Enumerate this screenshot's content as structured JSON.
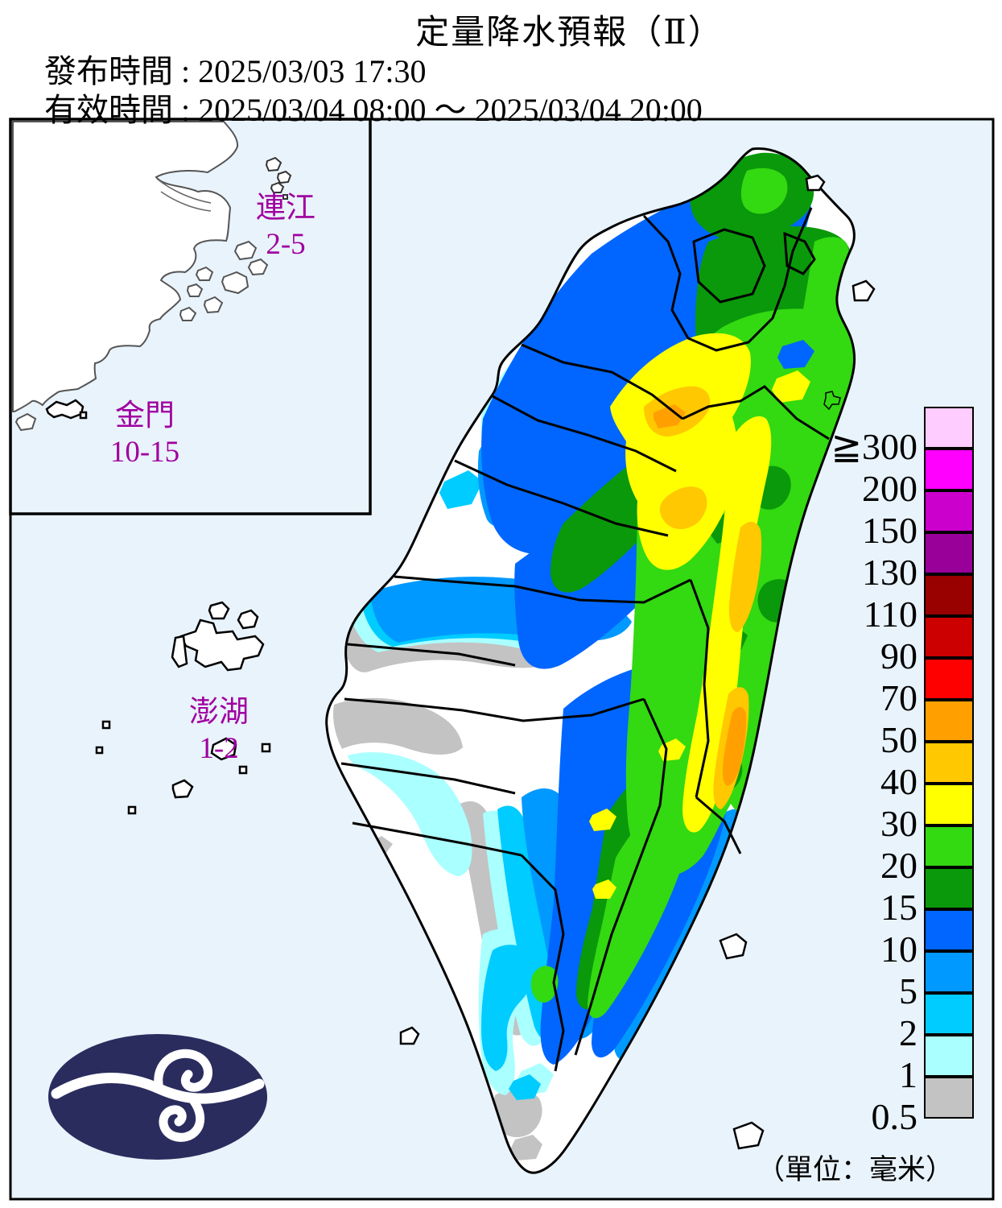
{
  "header": {
    "title": "定量降水預報（Ⅱ）",
    "issued_label": "發布時間",
    "separator": " : ",
    "issued_time": "2025/03/03 17:30",
    "valid_label": "有效時間",
    "valid_time": "2025/03/04 08:00 ～ 2025/03/04 20:00"
  },
  "offshore_regions": [
    {
      "name": "連江",
      "range": "2-5"
    },
    {
      "name": "金門",
      "range": "10-15"
    },
    {
      "name": "澎湖",
      "range": "1-2"
    }
  ],
  "legend": {
    "unit": "（單位：毫米）",
    "items": [
      {
        "value": "≧300",
        "color": "#FFCCFF"
      },
      {
        "value": "200",
        "color": "#FF00FF"
      },
      {
        "value": "150",
        "color": "#CC00CC"
      },
      {
        "value": "130",
        "color": "#990099"
      },
      {
        "value": "110",
        "color": "#990000"
      },
      {
        "value": "90",
        "color": "#CC0000"
      },
      {
        "value": "70",
        "color": "#FF0000"
      },
      {
        "value": "50",
        "color": "#FFA000"
      },
      {
        "value": "40",
        "color": "#FFC800"
      },
      {
        "value": "30",
        "color": "#FFFF00"
      },
      {
        "value": "20",
        "color": "#33D911"
      },
      {
        "value": "15",
        "color": "#0A990A"
      },
      {
        "value": "10",
        "color": "#0066FF"
      },
      {
        "value": "5",
        "color": "#0099FF"
      },
      {
        "value": "2",
        "color": "#00CCFF"
      },
      {
        "value": "1",
        "color": "#AAFFFF"
      },
      {
        "value": "0.5",
        "color": "#C3C3C3"
      }
    ]
  },
  "colors": {
    "sea": "#E9F3FB",
    "land": "#FFFFFF",
    "navy": "#2A2C5E",
    "purple": "#A000A0",
    "boundary": "#000000"
  }
}
